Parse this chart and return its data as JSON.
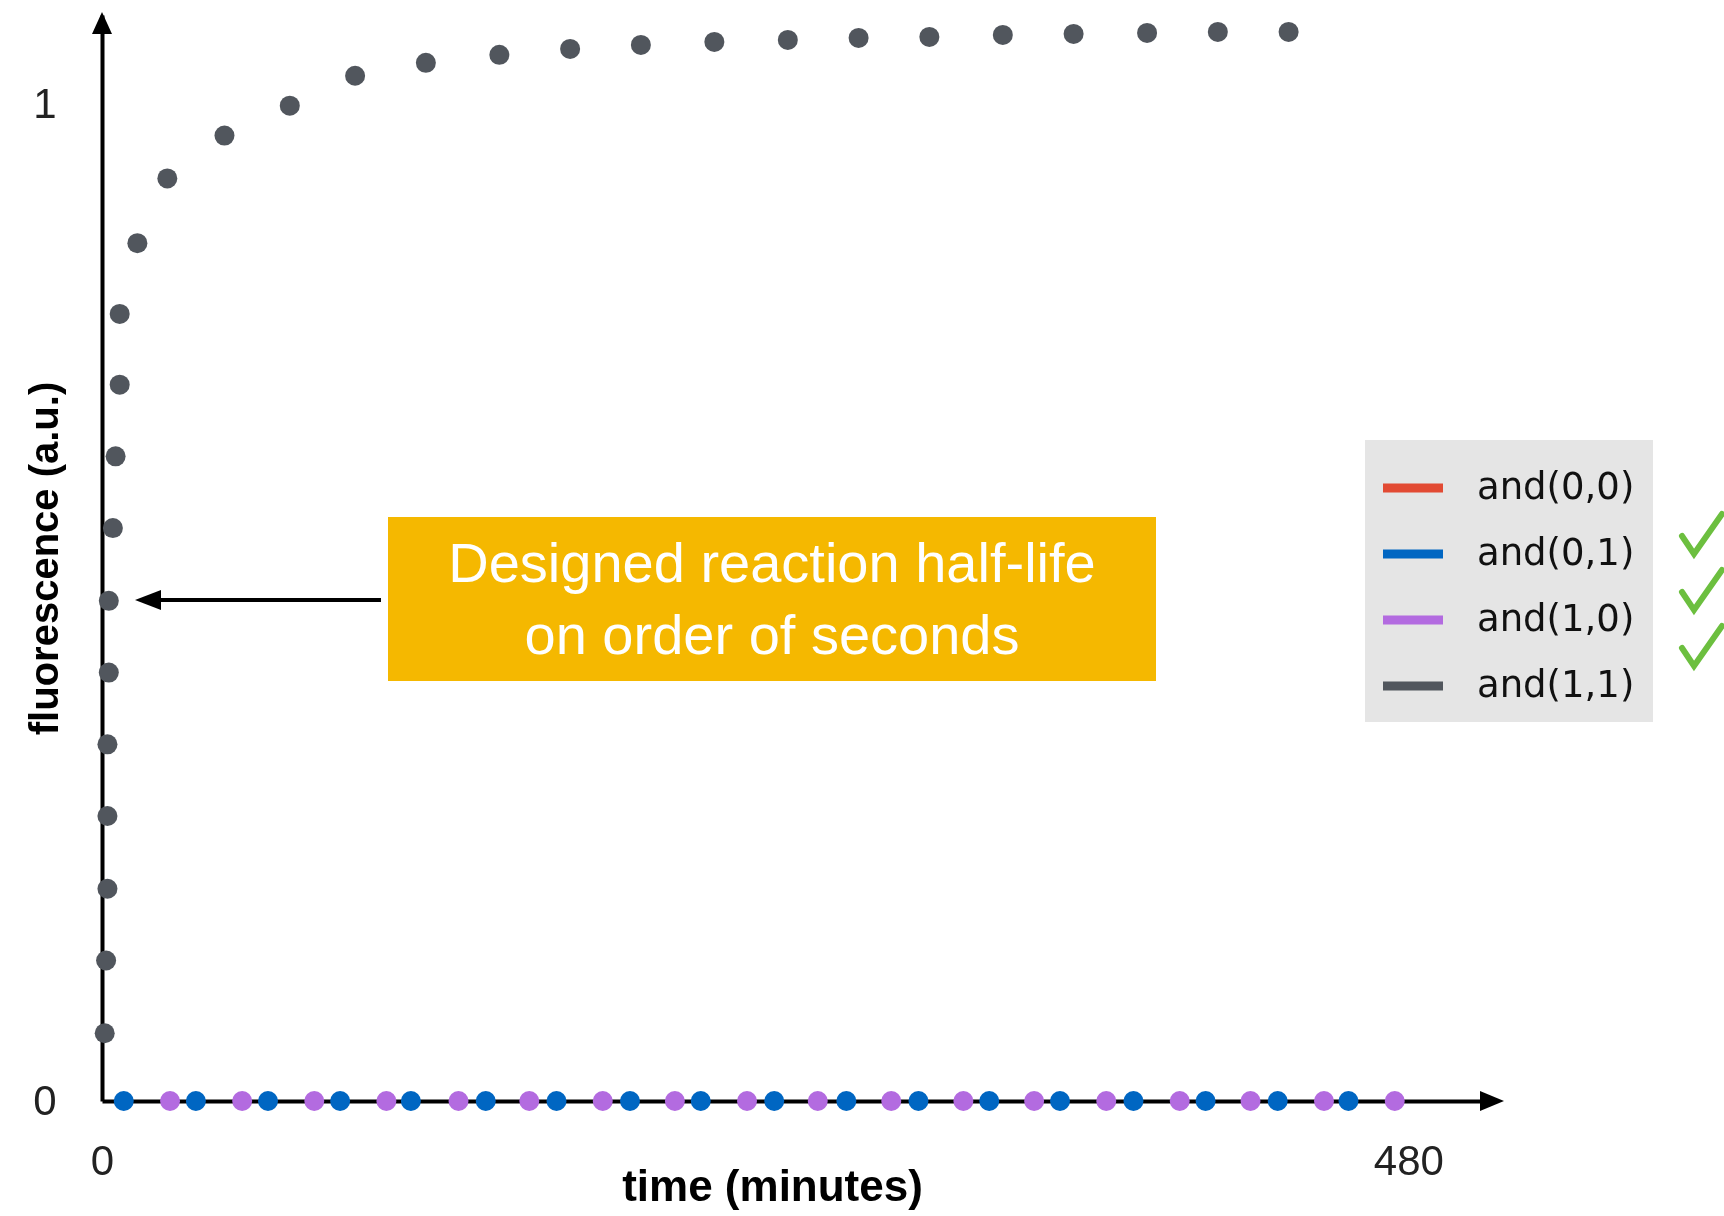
{
  "chart_data": {
    "type": "scatter",
    "xlabel": "time (minutes)",
    "ylabel": "fluorescence (a.u.)",
    "xlim": [
      0,
      510
    ],
    "ylim": [
      0,
      1.09
    ],
    "xticks": [
      0,
      480
    ],
    "yticks": [
      0,
      1
    ],
    "marker": "circle",
    "legend": "right",
    "series": [
      {
        "name": "and(0,0)",
        "color": "#e24a33"
      },
      {
        "name": "and(0,1)",
        "color": "#0066c2",
        "x": [
          8,
          34.5,
          61,
          87.5,
          113.5,
          141,
          167,
          194,
          220,
          247,
          273.5,
          300,
          326,
          352,
          379,
          405.5,
          432,
          458
        ],
        "values": [
          0,
          0,
          0,
          0,
          0,
          0,
          0,
          0,
          0,
          0,
          0,
          0,
          0,
          0,
          0,
          0,
          0,
          0
        ]
      },
      {
        "name": "and(1,0)",
        "color": "#b36be0",
        "x": [
          25,
          51.5,
          78,
          104.5,
          131,
          157,
          184,
          210.5,
          237,
          263,
          290,
          316.5,
          342.5,
          369,
          396,
          422,
          449,
          475
        ],
        "values": [
          0,
          0,
          0,
          0,
          0,
          0,
          0,
          0,
          0,
          0,
          0,
          0,
          0,
          0,
          0,
          0,
          0,
          0
        ]
      },
      {
        "name": "and(1,1)",
        "color": "#51565d",
        "x": [
          1,
          1.5,
          2,
          2,
          2,
          2.5,
          2.5,
          4,
          5,
          6.5,
          6.5,
          13,
          24,
          45,
          69,
          93,
          119,
          146,
          172,
          198,
          225,
          252,
          278,
          304,
          331,
          357,
          384,
          410,
          436
        ],
        "values": [
          0.068,
          0.141,
          0.213,
          0.286,
          0.358,
          0.43,
          0.502,
          0.575,
          0.647,
          0.719,
          0.79,
          0.861,
          0.926,
          0.969,
          0.999,
          1.029,
          1.042,
          1.05,
          1.056,
          1.06,
          1.063,
          1.065,
          1.067,
          1.068,
          1.07,
          1.071,
          1.072,
          1.073,
          1.073
        ]
      }
    ],
    "annotations": [
      "Designed reaction half-life\non order of seconds"
    ]
  }
}
